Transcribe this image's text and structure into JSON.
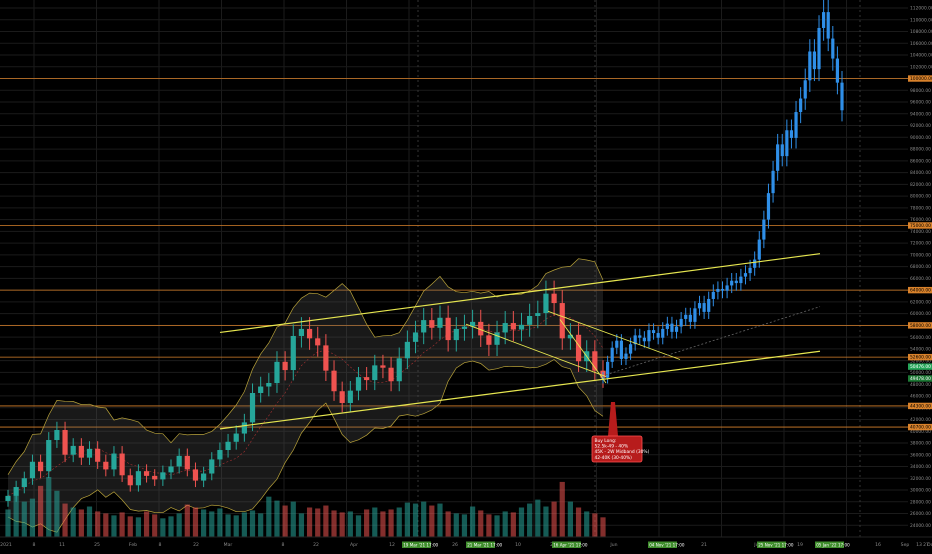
{
  "colors": {
    "background": "#000000",
    "grid": "#1b1b1b",
    "up": "#26a69a",
    "down": "#ef5350",
    "projection": "#2f8fe8",
    "channel": "#e6e650",
    "level": "#d9822b",
    "bollinger": "#b8a23a",
    "annotation": "#b71c1c"
  },
  "chart_data": {
    "type": "candlestick",
    "symbol": "",
    "title": "",
    "ylim": [
      22000,
      112000
    ],
    "y_ticks": [
      "112000.00",
      "110000.00",
      "108000.00",
      "106000.00",
      "104000.00",
      "102000.00",
      "100000.00",
      "98000.00",
      "96000.00",
      "94000.00",
      "92000.00",
      "90000.00",
      "88000.00",
      "86000.00",
      "84000.00",
      "82000.00",
      "80000.00",
      "78000.00",
      "76000.00",
      "74000.00",
      "72000.00",
      "70000.00",
      "68000.00",
      "66000.00",
      "64000.00",
      "62000.00",
      "60000.00",
      "58000.00",
      "56000.00",
      "54000.00",
      "52000.00",
      "50000.00",
      "48000.00",
      "46000.00",
      "44000.00",
      "42000.00",
      "40000.00",
      "38000.00",
      "36000.00",
      "34000.00",
      "32000.00",
      "30000.00",
      "28000.00",
      "26000.00",
      "24000.00"
    ],
    "x_ticks": [
      "2021",
      "8",
      "11",
      "25",
      "Feb",
      "8",
      "22",
      "Mar",
      "8",
      "22",
      "Apr",
      "12",
      "26",
      "May",
      "10",
      "24",
      "Jun",
      "7",
      "21",
      "Jul",
      "19",
      "Aug",
      "16",
      "Sep",
      "13",
      "27",
      "Oct"
    ],
    "x_highlight_labels": [
      "19 Mar '21  17:00",
      "21 Mar '21  17:00",
      "16 Apr '21  17:00",
      "04 Nov '21  17:00",
      "25 Nov '21  17:00",
      "05 Jan '22  17:00"
    ],
    "horizontal_levels": [
      {
        "price": 100000,
        "label": "100000.00"
      },
      {
        "price": 75000,
        "label": "75000.00"
      },
      {
        "price": 64000,
        "label": "64000.00"
      },
      {
        "price": 58000,
        "label": "58000.00"
      },
      {
        "price": 52600,
        "label": "52600.00"
      },
      {
        "price": 44300,
        "label": "44300.00"
      },
      {
        "price": 40700,
        "label": "40700.00"
      }
    ],
    "current_price_tags": [
      "50476.00",
      "49478.00"
    ],
    "channel": {
      "upper": [
        {
          "x": "2021-02-03",
          "y": 56800
        },
        {
          "x": "2021-07-24",
          "y": 70200
        }
      ],
      "lower": [
        {
          "x": "2021-02-03",
          "y": 40400
        },
        {
          "x": "2021-07-24",
          "y": 53600
        }
      ]
    },
    "annotation": {
      "lines": [
        "Buy Long:",
        "52.5k-49 - 40%",
        "45K - 2W Midband (30%)",
        "42-40K (30-40%)"
      ]
    },
    "series": [
      {
        "kind": "historical",
        "values": [
          29000,
          30500,
          32000,
          34800,
          33200,
          38500,
          40200,
          36000,
          37500,
          35500,
          37000,
          34800,
          33500,
          36200,
          32500,
          30800,
          33200,
          32400,
          31800,
          33000,
          34000,
          35800,
          33500,
          31600,
          32800,
          35200,
          36800,
          38200,
          39600,
          41500,
          46500,
          47600,
          48200,
          51800,
          50400,
          56200,
          57400,
          55800,
          54600,
          50300,
          46800,
          44800,
          46900,
          49200,
          48700,
          51200,
          50800,
          48500,
          52400,
          55200,
          56800,
          58900,
          57600,
          59300,
          55500,
          57400,
          57800,
          58600,
          56300,
          54700,
          56800,
          58400,
          57300,
          58100,
          59600,
          60100,
          63400,
          61800,
          55800,
          56400,
          51900,
          53600,
          50300,
          49100
        ]
      },
      {
        "kind": "projection",
        "values": [
          49100,
          51800,
          54200,
          55400,
          52300,
          53200,
          54800,
          56300,
          55900,
          55300,
          57200,
          56700,
          55900,
          57400,
          58300,
          56900,
          57800,
          59100,
          59800,
          58600,
          60900,
          61800,
          60300,
          62500,
          63700,
          64200,
          63900,
          64800,
          65600,
          65200,
          66300,
          66900,
          67800,
          69200,
          72600,
          76000,
          80500,
          84300,
          88800,
          86800,
          91200,
          89900,
          94300,
          96600,
          99700,
          104600,
          101600,
          108600,
          111300,
          106800,
          103400,
          99300,
          94600
        ]
      }
    ],
    "volume": [
      280,
      420,
      360,
      390,
      520,
      610,
      470,
      340,
      300,
      280,
      310,
      260,
      240,
      220,
      250,
      210,
      200,
      260,
      230,
      190,
      210,
      240,
      330,
      300,
      280,
      260,
      290,
      230,
      220,
      250,
      270,
      240,
      410,
      370,
      320,
      360,
      240,
      300,
      290,
      320,
      270,
      250,
      260,
      220,
      280,
      300,
      260,
      280,
      300,
      350,
      340,
      360,
      320,
      340,
      260,
      240,
      230,
      310,
      270,
      230,
      220,
      260,
      250,
      300,
      340,
      380,
      310,
      360,
      560,
      360,
      300,
      260,
      240,
      200
    ]
  }
}
